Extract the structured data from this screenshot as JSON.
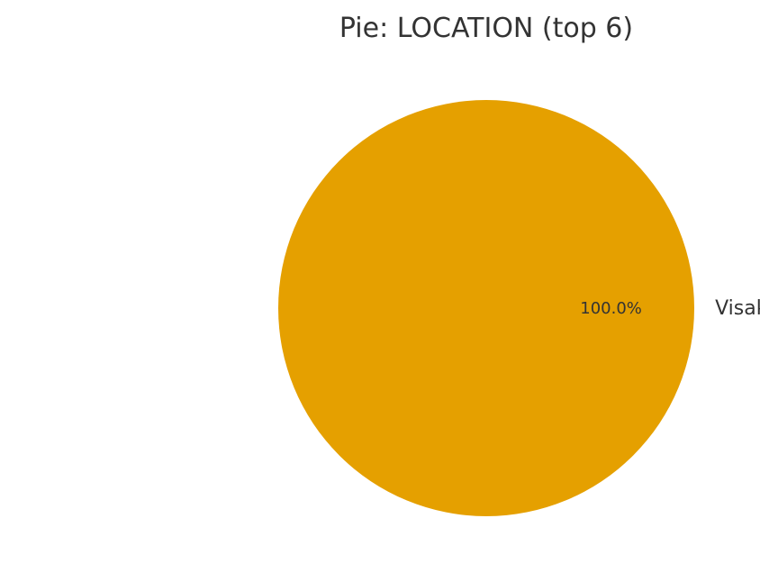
{
  "chart_data": {
    "type": "pie",
    "title": "Pie: LOCATION (top 6)",
    "slices": [
      {
        "label": "Visakhapatnam, India",
        "value": 100.0,
        "pct_label": "100.0%",
        "color": "#e5a000"
      }
    ],
    "legend": "none"
  },
  "colors": {
    "text": "#333333",
    "background": "#ffffff"
  }
}
